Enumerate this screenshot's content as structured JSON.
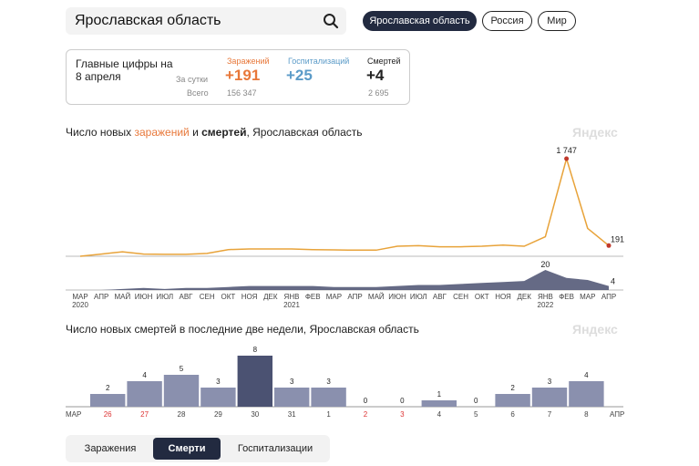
{
  "search": {
    "query": "Ярославская область"
  },
  "region_pills": [
    {
      "label": "Ярославская область",
      "active": true
    },
    {
      "label": "Россия",
      "active": false
    },
    {
      "label": "Мир",
      "active": false
    }
  ],
  "summary": {
    "title": "Главные цифры на 8 апреля",
    "per_day_label": "За сутки",
    "total_label": "Всего",
    "infections": {
      "label": "Заражений",
      "value": "+191",
      "total": "156 347",
      "color": "#e8783a"
    },
    "hospital": {
      "label": "Госпитализаций",
      "value": "+25",
      "color": "#5b9bc8"
    },
    "deaths": {
      "label": "Смертей",
      "value": "+4",
      "total": "2 695",
      "color": "#222222"
    }
  },
  "chart1": {
    "title_prefix": "Число новых ",
    "title_infections": "заражений",
    "title_mid": " и ",
    "title_deaths": "смертей",
    "title_suffix": ", Ярославская область",
    "watermark": "Яндекс",
    "peak_label": "1 747",
    "last_label": "191",
    "deaths_peak_label": "20",
    "deaths_last_label": "4",
    "x_ticks": [
      "МАР",
      "АПР",
      "МАЙ",
      "ИЮН",
      "ИЮЛ",
      "АВГ",
      "СЕН",
      "ОКТ",
      "НОЯ",
      "ДЕК",
      "ЯНВ",
      "ФЕВ",
      "МАР",
      "АПР",
      "МАЙ",
      "ИЮН",
      "ИЮЛ",
      "АВГ",
      "СЕН",
      "ОКТ",
      "НОЯ",
      "ДЕК",
      "ЯНВ",
      "ФЕВ",
      "МАР",
      "АПР"
    ],
    "year_labels": [
      {
        "label": "2020",
        "tick": 0
      },
      {
        "label": "2021",
        "tick": 10
      },
      {
        "label": "2022",
        "tick": 22
      }
    ]
  },
  "chart_data": [
    {
      "type": "area",
      "title": "Число новых заражений и смертей, Ярославская область",
      "series": [
        {
          "name": "заражений",
          "color": "#e8a33a",
          "unit": "month",
          "x": [
            "2020-03",
            "2020-04",
            "2020-05",
            "2020-06",
            "2020-07",
            "2020-08",
            "2020-09",
            "2020-10",
            "2020-11",
            "2020-12",
            "2021-01",
            "2021-02",
            "2021-03",
            "2021-04",
            "2021-05",
            "2021-06",
            "2021-07",
            "2021-08",
            "2021-09",
            "2021-10",
            "2021-11",
            "2021-12",
            "2022-01",
            "2022-02",
            "2022-03",
            "2022-04"
          ],
          "values": [
            0,
            40,
            80,
            40,
            35,
            35,
            50,
            120,
            130,
            130,
            130,
            120,
            115,
            110,
            110,
            180,
            190,
            170,
            170,
            180,
            200,
            180,
            350,
            1747,
            500,
            191
          ]
        },
        {
          "name": "смертей",
          "color": "#4a5070",
          "unit": "month",
          "x": [
            "2020-03",
            "2020-04",
            "2020-05",
            "2020-06",
            "2020-07",
            "2020-08",
            "2020-09",
            "2020-10",
            "2020-11",
            "2020-12",
            "2021-01",
            "2021-02",
            "2021-03",
            "2021-04",
            "2021-05",
            "2021-06",
            "2021-07",
            "2021-08",
            "2021-09",
            "2021-10",
            "2021-11",
            "2021-12",
            "2022-01",
            "2022-02",
            "2022-03",
            "2022-04"
          ],
          "values": [
            0,
            0,
            1,
            2,
            1,
            2,
            2,
            3,
            4,
            4,
            4,
            4,
            3,
            3,
            3,
            4,
            5,
            5,
            6,
            7,
            8,
            9,
            20,
            12,
            10,
            4
          ]
        }
      ]
    },
    {
      "type": "bar",
      "title": "Число новых смертей в последние две недели, Ярославская область",
      "categories": [
        "26",
        "27",
        "28",
        "29",
        "30",
        "31",
        "1",
        "2",
        "3",
        "4",
        "5",
        "6",
        "7",
        "8"
      ],
      "values": [
        2,
        4,
        5,
        3,
        8,
        3,
        3,
        0,
        0,
        1,
        0,
        2,
        3,
        4
      ],
      "weekend": [
        true,
        true,
        false,
        false,
        false,
        false,
        false,
        true,
        true,
        false,
        false,
        false,
        false,
        false
      ],
      "month_start": "МАР",
      "month_end": "АПР",
      "watermark": "Яндекс"
    }
  ],
  "tabs": [
    {
      "label": "Заражения",
      "active": false
    },
    {
      "label": "Смерти",
      "active": true
    },
    {
      "label": "Госпитализации",
      "active": false
    }
  ]
}
